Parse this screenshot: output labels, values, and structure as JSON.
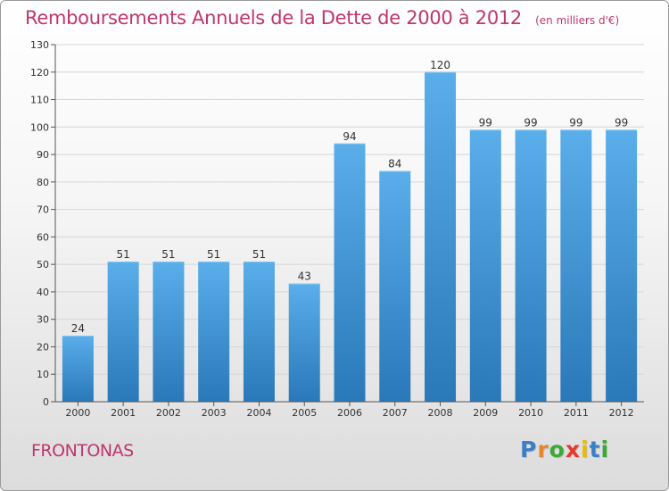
{
  "header": {
    "title": "Remboursements Annuels de la Dette de 2000 à 2012",
    "unit": "(en milliers d'€)"
  },
  "footer": {
    "place": "FRONTONAS",
    "logo_letters": [
      {
        "char": "P",
        "color": "#3a7fc8"
      },
      {
        "char": "r",
        "color": "#e8862a"
      },
      {
        "char": "o",
        "color": "#3aaa35"
      },
      {
        "char": "x",
        "color": "#e23a2e"
      },
      {
        "char": "i",
        "color": "#f0b800"
      },
      {
        "char": "t",
        "color": "#3a7fc8"
      },
      {
        "char": "i",
        "color": "#3aaa35"
      }
    ]
  },
  "chart_data": {
    "type": "bar",
    "title": "Remboursements Annuels de la Dette de 2000 à 2012",
    "subtitle": "(en milliers d'€)",
    "xlabel": "",
    "ylabel": "",
    "categories": [
      "2000",
      "2001",
      "2002",
      "2003",
      "2004",
      "2005",
      "2006",
      "2007",
      "2008",
      "2009",
      "2010",
      "2011",
      "2012"
    ],
    "values": [
      24,
      51,
      51,
      51,
      51,
      43,
      94,
      84,
      120,
      99,
      99,
      99,
      99
    ],
    "ylim": [
      0,
      130
    ],
    "yticks": [
      0,
      10,
      20,
      30,
      40,
      50,
      60,
      70,
      80,
      90,
      100,
      110,
      120,
      130
    ],
    "grid": true,
    "legend": "none",
    "bar_color_top": "#5aaeea",
    "bar_color_bottom": "#2a78b8"
  }
}
